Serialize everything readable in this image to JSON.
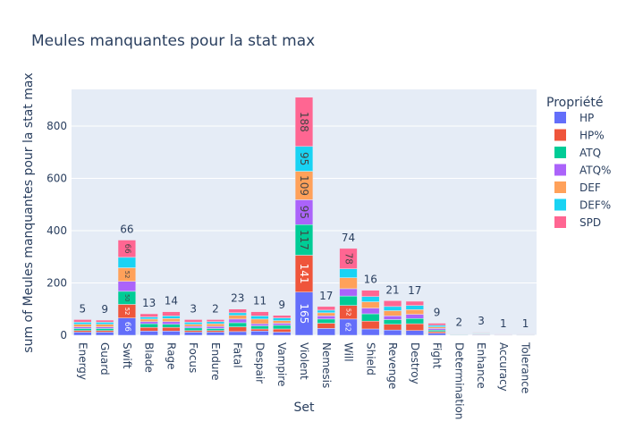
{
  "chart_data": {
    "type": "bar",
    "stacked": true,
    "title": "Meules manquantes pour la stat max",
    "xlabel": "Set",
    "ylabel": "sum of Meules manquantes pour la stat max",
    "ylim": [
      0,
      940
    ],
    "yticks": [
      0,
      200,
      400,
      600,
      800
    ],
    "legend_title": "Propriété",
    "legend_position": "right",
    "grid": true,
    "categories": [
      "Energy",
      "Guard",
      "Swift",
      "Blade",
      "Rage",
      "Focus",
      "Endure",
      "Fatal",
      "Despair",
      "Vampire",
      "Violent",
      "Nemesis",
      "Will",
      "Shield",
      "Revenge",
      "Destroy",
      "Fight",
      "Determination",
      "Enhance",
      "Accuracy",
      "Tolerance"
    ],
    "series": [
      {
        "name": "HP",
        "color": "#636efa",
        "values": [
          12,
          12,
          66,
          16,
          16,
          12,
          12,
          14,
          16,
          12,
          165,
          26,
          62,
          24,
          20,
          18,
          8,
          1,
          2,
          1,
          1
        ]
      },
      {
        "name": "HP%",
        "color": "#EF553B",
        "values": [
          6,
          6,
          52,
          14,
          14,
          6,
          6,
          18,
          8,
          12,
          141,
          20,
          52,
          30,
          22,
          26,
          6,
          1,
          2,
          1,
          0
        ]
      },
      {
        "name": "ATQ",
        "color": "#00cc96",
        "values": [
          8,
          8,
          50,
          14,
          12,
          10,
          8,
          16,
          12,
          14,
          117,
          16,
          36,
          28,
          18,
          20,
          6,
          2,
          2,
          0,
          1
        ]
      },
      {
        "name": "ATQ%",
        "color": "#ab63fa",
        "values": [
          6,
          6,
          38,
          8,
          10,
          6,
          8,
          14,
          8,
          8,
          95,
          12,
          28,
          22,
          14,
          16,
          6,
          1,
          2,
          0,
          0
        ]
      },
      {
        "name": "DEF",
        "color": "#FFA15A",
        "values": [
          10,
          10,
          52,
          10,
          12,
          8,
          10,
          14,
          18,
          10,
          109,
          12,
          42,
          24,
          20,
          18,
          6,
          1,
          2,
          1,
          1
        ]
      },
      {
        "name": "DEF%",
        "color": "#19d3f3",
        "values": [
          8,
          8,
          40,
          8,
          10,
          8,
          8,
          10,
          12,
          10,
          95,
          10,
          34,
          20,
          16,
          16,
          6,
          1,
          1,
          0,
          0
        ]
      },
      {
        "name": "SPD",
        "color": "#FF6692",
        "values": [
          10,
          8,
          66,
          12,
          16,
          10,
          8,
          14,
          16,
          10,
          188,
          14,
          78,
          24,
          22,
          16,
          8,
          1,
          2,
          1,
          1
        ]
      }
    ],
    "annotations": [
      5,
      9,
      66,
      13,
      14,
      3,
      2,
      23,
      11,
      9,
      null,
      17,
      74,
      16,
      21,
      17,
      9,
      2,
      3,
      1,
      1
    ]
  }
}
